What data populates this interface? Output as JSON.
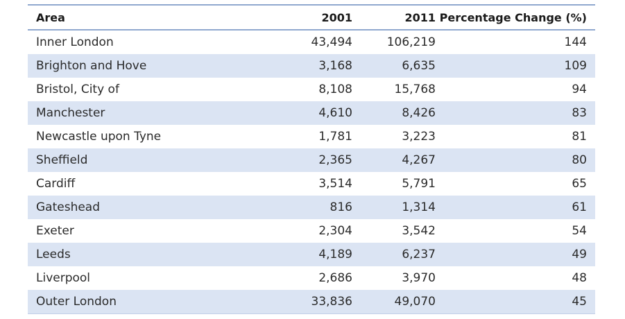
{
  "chart_data": {
    "type": "table",
    "columns": [
      "Area",
      "2001",
      "2011",
      "Percentage Change (%)"
    ],
    "rows": [
      {
        "area": "Inner London",
        "y2001": "43,494",
        "y2011": "106,219",
        "pct": "144"
      },
      {
        "area": "Brighton and Hove",
        "y2001": "3,168",
        "y2011": "6,635",
        "pct": "109"
      },
      {
        "area": "Bristol, City of",
        "y2001": "8,108",
        "y2011": "15,768",
        "pct": "94"
      },
      {
        "area": "Manchester",
        "y2001": "4,610",
        "y2011": "8,426",
        "pct": "83"
      },
      {
        "area": "Newcastle upon Tyne",
        "y2001": "1,781",
        "y2011": "3,223",
        "pct": "81"
      },
      {
        "area": "Sheffield",
        "y2001": "2,365",
        "y2011": "4,267",
        "pct": "80"
      },
      {
        "area": "Cardiff",
        "y2001": "3,514",
        "y2011": "5,791",
        "pct": "65"
      },
      {
        "area": "Gateshead",
        "y2001": "816",
        "y2011": "1,314",
        "pct": "61"
      },
      {
        "area": "Exeter",
        "y2001": "2,304",
        "y2011": "3,542",
        "pct": "54"
      },
      {
        "area": "Leeds",
        "y2001": "4,189",
        "y2011": "6,237",
        "pct": "49"
      },
      {
        "area": "Liverpool",
        "y2001": "2,686",
        "y2011": "3,970",
        "pct": "48"
      },
      {
        "area": "Outer London",
        "y2001": "33,836",
        "y2011": "49,070",
        "pct": "45"
      }
    ],
    "colors": {
      "header_rule": "#8fa8cf",
      "band_fill": "#dbe4f3"
    }
  }
}
